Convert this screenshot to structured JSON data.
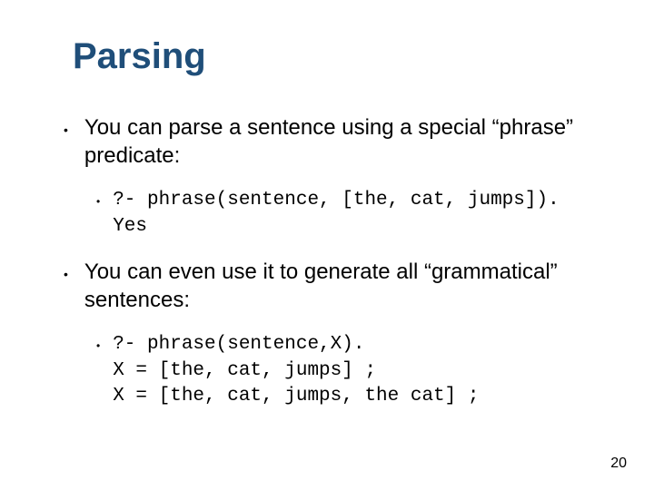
{
  "slide": {
    "title": "Parsing",
    "title_color": "#1f4e79",
    "title_fontsize": 40,
    "body_fontsize": 24,
    "code_fontsize": 21,
    "background_color": "#ffffff",
    "text_color": "#000000",
    "page_number": "20",
    "items": [
      {
        "text": "You can parse a sentence using a special “phrase” predicate:",
        "code": "?- phrase(sentence, [the, cat, jumps]).\nYes"
      },
      {
        "text": "You can even use it to generate all “grammatical” sentences:",
        "code": "?- phrase(sentence,X).\nX = [the, cat, jumps] ;\nX = [the, cat, jumps, the cat] ;"
      }
    ]
  }
}
